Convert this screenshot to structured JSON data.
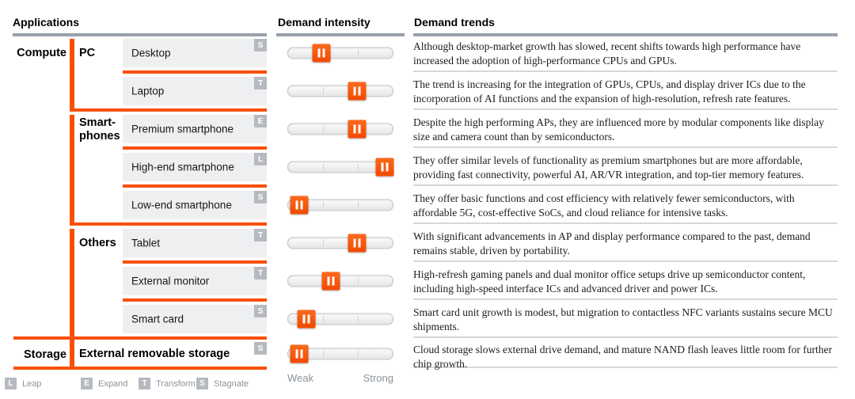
{
  "headers": {
    "applications": "Applications",
    "intensity": "Demand intensity",
    "trends": "Demand trends"
  },
  "categories": [
    {
      "label": "Compute"
    },
    {
      "label": "Storage"
    }
  ],
  "groups": [
    {
      "label": "PC"
    },
    {
      "label": "Smart-phones"
    },
    {
      "label": "Others"
    }
  ],
  "rows": [
    {
      "item": "Desktop",
      "badge": "S",
      "intensity_pct": 32,
      "trend": "Although desktop-market growth has slowed, recent shifts towards high performance have increased the adoption of high-performance CPUs and GPUs."
    },
    {
      "item": "Laptop",
      "badge": "T",
      "intensity_pct": 66,
      "trend": "The trend is increasing for the integration of GPUs, CPUs, and display driver ICs due to the incorporation of AI functions and the expansion of high-resolution, refresh rate features."
    },
    {
      "item": "Premium smartphone",
      "badge": "E",
      "intensity_pct": 66,
      "trend": "Despite the high performing APs, they are influenced more by modular components like display size and camera count than by semiconductors."
    },
    {
      "item": "High-end smartphone",
      "badge": "L",
      "intensity_pct": 92,
      "trend": "They offer similar levels of functionality as premium smartphones but are more affordable, providing fast connectivity, powerful AI, AR/VR integration, and top-tier memory features."
    },
    {
      "item": "Low-end smartphone",
      "badge": "S",
      "intensity_pct": 11,
      "trend": "They offer basic functions and cost efficiency with relatively fewer semiconductors, with affordable 5G, cost-effective SoCs, and cloud reliance for intensive tasks."
    },
    {
      "item": "Tablet",
      "badge": "T",
      "intensity_pct": 66,
      "trend": "With significant advancements in AP and display performance compared to the past, demand remains stable, driven by portability."
    },
    {
      "item": "External monitor",
      "badge": "T",
      "intensity_pct": 41,
      "trend": "High-refresh gaming panels and dual monitor office setups drive up semiconductor content, including high-speed interface ICs and advanced driver and power ICs."
    },
    {
      "item": "Smart card",
      "badge": "S",
      "intensity_pct": 18,
      "trend": "Smart card unit growth is modest, but migration to contactless NFC variants sustains secure MCU shipments."
    },
    {
      "item": "External removable storage",
      "badge": "S",
      "intensity_pct": 11,
      "trend": "Cloud storage slows external drive demand, and mature NAND flash leaves little room for further chip growth."
    }
  ],
  "scale": {
    "weak": "Weak",
    "strong": "Strong"
  },
  "legend": [
    {
      "badge": "L",
      "label": "Leap"
    },
    {
      "badge": "E",
      "label": "Expand"
    },
    {
      "badge": "T",
      "label": "Transform"
    },
    {
      "badge": "S",
      "label": "Stagnate"
    }
  ],
  "colors": {
    "accent_orange": "#f7500a",
    "header_rule": "#98a0ab",
    "item_box": "#eeeff0",
    "badge_gray": "#b6bac0",
    "trend_divider": "#d5d7d9"
  }
}
